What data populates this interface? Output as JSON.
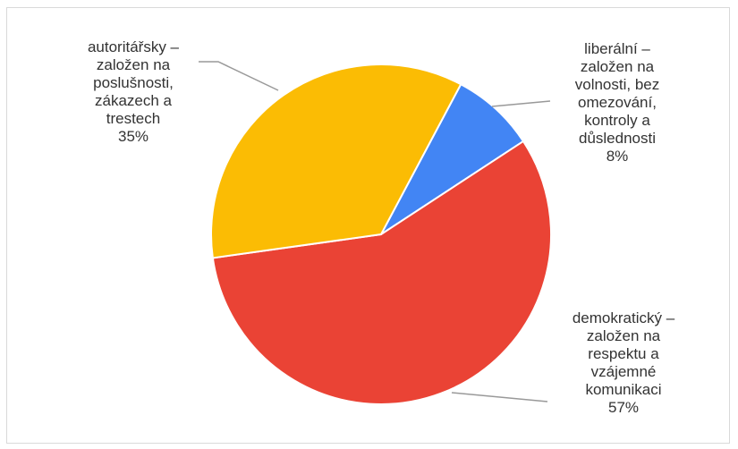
{
  "chart_data": {
    "type": "pie",
    "slices": [
      {
        "label": "liberální – založen na volnosti, bez omezování, kontroly a důslednosti",
        "value": 8,
        "display": "8%",
        "color": "#4285f4"
      },
      {
        "label": "demokratický – založen na respektu a vzájemné komunikaci",
        "value": 57,
        "display": "57%",
        "color": "#ea4335"
      },
      {
        "label": "autoritářsky – založen na poslušnosti, zákazech a trestech",
        "value": 35,
        "display": "35%",
        "color": "#fbbc04"
      }
    ]
  },
  "labels": {
    "liberal": "liberální –\nzaložen na\nvolnosti, bez\nomezování,\nkontroly a\ndůslednosti\n8%",
    "democratic": "demokratický –\nzaložen na\nrespektu a\nvzájemné\nkomunikaci\n57%",
    "authoritarian": "autoritářsky –\nzaložen na\nposlušnosti,\nzákazech a\ntrestech\n35%"
  },
  "colors": {
    "leader_line": "#999999",
    "slice_border": "#ffffff",
    "label_text": "#333333"
  }
}
